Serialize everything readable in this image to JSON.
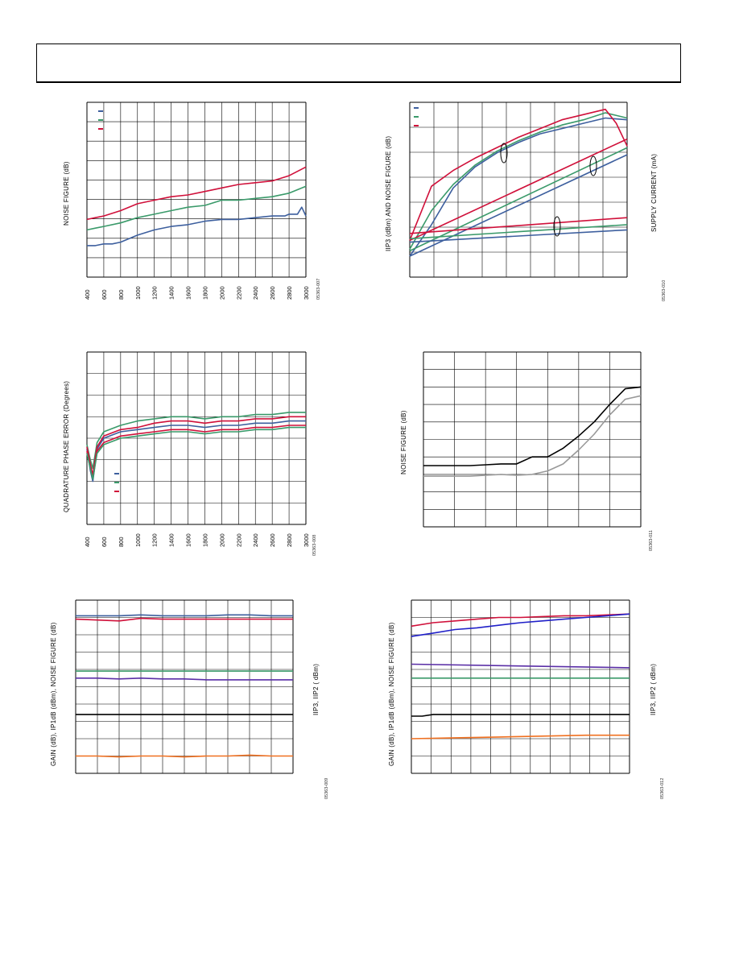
{
  "chart_data": [
    {
      "type": "line",
      "ylabel": "NOISE FIGURE (dB)",
      "x_ticks": [
        "400",
        "600",
        "800",
        "1000",
        "1200",
        "1400",
        "1600",
        "1800",
        "2000",
        "2200",
        "2400",
        "2600",
        "2800",
        "3000"
      ],
      "xlim": [
        400,
        3000
      ],
      "ylim": [
        0,
        10
      ],
      "grid": true,
      "legend": "top-left",
      "figure_id": "05363-007",
      "series": [
        {
          "color": "#3d5f9e",
          "x": [
            400,
            500,
            600,
            700,
            800,
            1000,
            1200,
            1400,
            1600,
            1800,
            2000,
            2200,
            2400,
            2600,
            2750,
            2800,
            2900,
            2950,
            3000
          ],
          "y": [
            1.8,
            1.8,
            1.9,
            1.9,
            2.0,
            2.4,
            2.7,
            2.9,
            3.0,
            3.2,
            3.3,
            3.3,
            3.4,
            3.5,
            3.5,
            3.6,
            3.6,
            4.0,
            3.5
          ]
        },
        {
          "color": "#3a9a6a",
          "x": [
            400,
            500,
            600,
            800,
            1000,
            1200,
            1400,
            1600,
            1800,
            2000,
            2200,
            2400,
            2600,
            2800,
            3000
          ],
          "y": [
            2.7,
            2.8,
            2.9,
            3.1,
            3.4,
            3.6,
            3.8,
            4.0,
            4.1,
            4.4,
            4.4,
            4.5,
            4.6,
            4.8,
            5.2
          ]
        },
        {
          "color": "#d0103a",
          "x": [
            400,
            500,
            600,
            800,
            1000,
            1200,
            1400,
            1600,
            1800,
            2000,
            2200,
            2400,
            2600,
            2800,
            3000
          ],
          "y": [
            3.3,
            3.4,
            3.5,
            3.8,
            4.2,
            4.4,
            4.6,
            4.7,
            4.9,
            5.1,
            5.3,
            5.4,
            5.5,
            5.8,
            6.3
          ]
        }
      ]
    },
    {
      "type": "line",
      "ylabel": "IIP3 (dBm) AND NOISE FIGURE (dB)",
      "y2label": "SUPPLY CURRENT (mA)",
      "xlim": [
        0,
        10
      ],
      "ylim": [
        0,
        10
      ],
      "grid": true,
      "legend": "top-left",
      "figure_id": "05363-010",
      "series": [
        {
          "color": "#3d5f9e",
          "x": [
            0,
            1,
            2,
            3,
            4,
            5,
            6,
            7,
            8,
            9,
            10
          ],
          "y": [
            1.2,
            3.0,
            5.1,
            6.3,
            7.1,
            7.7,
            8.2,
            8.5,
            8.8,
            9.1,
            9.0
          ]
        },
        {
          "color": "#3a9a6a",
          "x": [
            0,
            1,
            2,
            3,
            4,
            5,
            6,
            7,
            8,
            9,
            10
          ],
          "y": [
            1.6,
            3.8,
            5.3,
            6.4,
            7.2,
            7.8,
            8.3,
            8.7,
            9.0,
            9.4,
            9.1
          ]
        },
        {
          "color": "#d0103a",
          "x": [
            0,
            1,
            2,
            3,
            4,
            5,
            6,
            7,
            8,
            9,
            9.5,
            10
          ],
          "y": [
            2.1,
            5.2,
            6.1,
            6.8,
            7.4,
            8.0,
            8.5,
            9.0,
            9.3,
            9.6,
            8.8,
            7.5
          ]
        },
        {
          "color": "#3d5f9e",
          "x": [
            0,
            10
          ],
          "y": [
            1.2,
            7.0
          ]
        },
        {
          "color": "#3a9a6a",
          "x": [
            0,
            10
          ],
          "y": [
            1.5,
            7.4
          ]
        },
        {
          "color": "#d0103a",
          "x": [
            0,
            10
          ],
          "y": [
            2.1,
            7.9
          ]
        },
        {
          "color": "#3d5f9e",
          "x": [
            0,
            10
          ],
          "y": [
            2.0,
            2.7
          ]
        },
        {
          "color": "#3a9a6a",
          "x": [
            0,
            10
          ],
          "y": [
            2.2,
            3.0
          ]
        },
        {
          "color": "#d0103a",
          "x": [
            0,
            10
          ],
          "y": [
            2.5,
            3.4
          ]
        }
      ]
    },
    {
      "type": "line",
      "ylabel": "QUADRATURE PHASE ERROR (Degrees)",
      "x_ticks": [
        "400",
        "600",
        "800",
        "1000",
        "1200",
        "1400",
        "1600",
        "1800",
        "2000",
        "2200",
        "2400",
        "2600",
        "2800",
        "3000"
      ],
      "xlim": [
        400,
        3000
      ],
      "ylim": [
        -4,
        4
      ],
      "grid": true,
      "legend": "bottom-left",
      "figure_id": "05363-008",
      "series": [
        {
          "color": "#3d5f9e",
          "x": [
            400,
            440,
            470,
            520,
            600,
            800,
            1000,
            1200,
            1400,
            1600,
            1800,
            2000,
            2200,
            2400,
            2600,
            2800,
            3000
          ],
          "y": [
            -0.5,
            -1.5,
            -2.0,
            -0.5,
            0.0,
            0.3,
            0.4,
            0.5,
            0.6,
            0.6,
            0.5,
            0.6,
            0.6,
            0.7,
            0.7,
            0.8,
            0.8
          ]
        },
        {
          "color": "#3a9a6a",
          "x": [
            400,
            440,
            470,
            520,
            600,
            800,
            1000,
            1200,
            1400,
            1600,
            1800,
            2000,
            2200,
            2400,
            2600,
            2800,
            3000
          ],
          "y": [
            -0.3,
            -1.0,
            -1.4,
            -0.2,
            0.3,
            0.6,
            0.8,
            0.9,
            1.0,
            1.0,
            0.9,
            1.0,
            1.0,
            1.1,
            1.1,
            1.2,
            1.2
          ]
        },
        {
          "color": "#d0103a",
          "x": [
            400,
            440,
            470,
            520,
            600,
            800,
            1000,
            1200,
            1400,
            1600,
            1800,
            2000,
            2200,
            2400,
            2600,
            2800,
            3000
          ],
          "y": [
            -0.4,
            -1.2,
            -1.7,
            -0.4,
            0.1,
            0.4,
            0.5,
            0.7,
            0.8,
            0.8,
            0.7,
            0.8,
            0.8,
            0.9,
            0.9,
            1.0,
            1.0
          ]
        },
        {
          "color": "#d0103a",
          "x": [
            400,
            440,
            470,
            520,
            600,
            800,
            1000,
            1200,
            1400,
            1600,
            1800,
            2000,
            2200,
            2400,
            2600,
            2800,
            3000
          ],
          "y": [
            -0.6,
            -1.3,
            -1.8,
            -0.6,
            -0.2,
            0.1,
            0.2,
            0.3,
            0.4,
            0.4,
            0.3,
            0.4,
            0.4,
            0.5,
            0.5,
            0.6,
            0.6
          ]
        },
        {
          "color": "#3a9a6a",
          "x": [
            400,
            440,
            470,
            520,
            600,
            800,
            1000,
            1200,
            1400,
            1600,
            1800,
            2000,
            2200,
            2400,
            2600,
            2800,
            3000
          ],
          "y": [
            -0.7,
            -1.4,
            -1.9,
            -0.7,
            -0.3,
            0.0,
            0.1,
            0.2,
            0.3,
            0.3,
            0.2,
            0.3,
            0.3,
            0.4,
            0.4,
            0.5,
            0.5
          ]
        }
      ]
    },
    {
      "type": "line",
      "ylabel": "NOISE FIGURE (dB)",
      "xlim": [
        0,
        7
      ],
      "ylim": [
        0,
        10
      ],
      "grid": true,
      "figure_id": "05363-011",
      "series": [
        {
          "color": "#000000",
          "x": [
            0,
            0.5,
            1,
            1.5,
            2,
            2.5,
            3,
            3.5,
            4,
            4.5,
            5,
            5.5,
            6,
            6.5,
            7
          ],
          "y": [
            3.5,
            3.5,
            3.5,
            3.5,
            3.55,
            3.6,
            3.6,
            4.0,
            4.0,
            4.5,
            5.2,
            6.0,
            7.0,
            7.9,
            8.0
          ]
        },
        {
          "color": "#999999",
          "x": [
            0,
            0.5,
            1,
            1.5,
            2,
            2.5,
            3,
            3.5,
            4,
            4.5,
            5,
            5.5,
            6,
            6.5,
            7
          ],
          "y": [
            2.9,
            2.9,
            2.9,
            2.9,
            2.95,
            3.0,
            2.95,
            3.0,
            3.2,
            3.6,
            4.4,
            5.3,
            6.4,
            7.3,
            7.5
          ]
        }
      ]
    },
    {
      "type": "line",
      "ylabel": "GAIN (dB), IP1dB (dBm), NOISE FIGURE (dB)",
      "y2label": "IIP3, IIP2 ( dBm)",
      "xlim": [
        0,
        10
      ],
      "ylim": [
        0,
        10
      ],
      "grid": true,
      "figure_id": "05363-009",
      "series": [
        {
          "color": "#3d5f9e",
          "x": [
            0,
            1,
            2,
            3,
            4,
            5,
            6,
            7,
            8,
            9,
            10
          ],
          "y": [
            9.1,
            9.1,
            9.1,
            9.15,
            9.1,
            9.1,
            9.1,
            9.15,
            9.15,
            9.1,
            9.1
          ]
        },
        {
          "color": "#d0103a",
          "x": [
            0,
            1,
            2,
            3,
            4,
            5,
            6,
            7,
            8,
            9,
            10
          ],
          "y": [
            8.9,
            8.85,
            8.8,
            8.95,
            8.9,
            8.9,
            8.9,
            8.9,
            8.9,
            8.9,
            8.9
          ]
        },
        {
          "color": "#3a9a6a",
          "x": [
            0,
            10
          ],
          "y": [
            5.9,
            5.9
          ]
        },
        {
          "color": "#5a2ea6",
          "x": [
            0,
            1,
            2,
            3,
            4,
            5,
            6,
            7,
            8,
            9,
            10
          ],
          "y": [
            5.5,
            5.5,
            5.45,
            5.5,
            5.45,
            5.45,
            5.4,
            5.4,
            5.4,
            5.4,
            5.4
          ]
        },
        {
          "color": "#000000",
          "x": [
            0,
            10
          ],
          "y": [
            3.4,
            3.4
          ]
        },
        {
          "color": "#f07020",
          "x": [
            0,
            1,
            2,
            3,
            4,
            5,
            6,
            7,
            8,
            9,
            10
          ],
          "y": [
            1.0,
            1.0,
            0.95,
            1.0,
            1.0,
            0.95,
            1.0,
            1.0,
            1.05,
            1.0,
            1.0
          ]
        }
      ]
    },
    {
      "type": "line",
      "ylabel": "GAIN (dB), IP1dB (dBm), NOISE FIGURE (dB)",
      "y2label": "IIP3, IIP2 ( dBm)",
      "xlim": [
        0,
        10
      ],
      "ylim": [
        0,
        10
      ],
      "grid": true,
      "figure_id": "05363-012",
      "series": [
        {
          "color": "#d0103a",
          "x": [
            0,
            1,
            2,
            3,
            4,
            5,
            6,
            7,
            8,
            9,
            10
          ],
          "y": [
            8.5,
            8.7,
            8.8,
            8.9,
            9.0,
            9.0,
            9.05,
            9.1,
            9.1,
            9.15,
            9.2
          ]
        },
        {
          "color": "#2020c8",
          "x": [
            0,
            1,
            2,
            3,
            4,
            5,
            6,
            7,
            8,
            9,
            10
          ],
          "y": [
            7.9,
            8.1,
            8.3,
            8.4,
            8.55,
            8.7,
            8.8,
            8.9,
            9.0,
            9.1,
            9.2
          ]
        },
        {
          "color": "#5a2ea6",
          "x": [
            0,
            10
          ],
          "y": [
            6.3,
            6.1
          ]
        },
        {
          "color": "#3a9a6a",
          "x": [
            0,
            10
          ],
          "y": [
            5.5,
            5.5
          ]
        },
        {
          "color": "#000000",
          "x": [
            0,
            0.5,
            1,
            10
          ],
          "y": [
            3.3,
            3.3,
            3.4,
            3.4
          ]
        },
        {
          "color": "#f07020",
          "x": [
            0,
            2,
            4,
            6,
            8,
            10
          ],
          "y": [
            2.0,
            2.05,
            2.1,
            2.15,
            2.2,
            2.2
          ]
        }
      ]
    }
  ]
}
